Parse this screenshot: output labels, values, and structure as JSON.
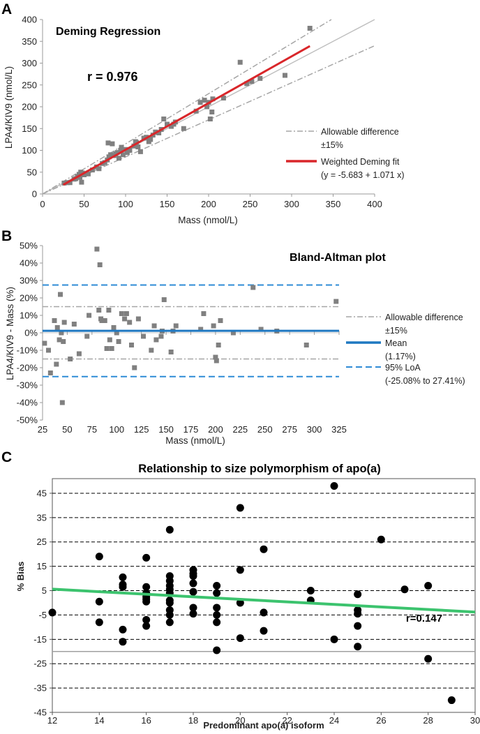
{
  "panels": {
    "a": {
      "letter": "A",
      "title": "Deming Regression",
      "r_label": "r = 0.976"
    },
    "b": {
      "letter": "B",
      "title": "Bland-Altman plot"
    },
    "c": {
      "letter": "C",
      "title": "Relationship to size polymorphism of apo(a)",
      "r_label": "r=0.147"
    }
  },
  "colors": {
    "points_grey": "#808080",
    "deming_fit": "#d9262a",
    "allowable": "#a6a6a6",
    "identity": "#bfbfbf",
    "mean_line": "#1f78c1",
    "loa_line": "#2e8bd6",
    "trend_line": "#3cc36e",
    "points_black": "#000000"
  },
  "chart_data": [
    {
      "id": "A",
      "type": "scatter",
      "title": "Deming Regression",
      "xlabel": "Mass (nmol/L)",
      "ylabel": "LPA4/KIV9 (nmol/L)",
      "xlim": [
        0,
        400
      ],
      "ylim": [
        0,
        400
      ],
      "xticks": [
        0,
        50,
        100,
        150,
        200,
        250,
        300,
        350,
        400
      ],
      "yticks": [
        0,
        50,
        100,
        150,
        200,
        250,
        300,
        350,
        400
      ],
      "annotation": "r = 0.976",
      "legend": [
        {
          "label": "Allowable difference",
          "sublabel": "±15%",
          "style": "dash-dot"
        },
        {
          "label": "Weighted Deming fit",
          "sublabel": "(y = -5.683 + 1.071 x)",
          "style": "solid-red"
        }
      ],
      "fit": {
        "intercept": -5.683,
        "slope": 1.071,
        "x_range": [
          25,
          322
        ]
      },
      "points": [
        [
          26,
          25
        ],
        [
          30,
          26
        ],
        [
          33,
          26
        ],
        [
          38,
          34
        ],
        [
          40,
          35
        ],
        [
          42,
          40
        ],
        [
          44,
          45
        ],
        [
          45,
          38
        ],
        [
          46,
          50
        ],
        [
          47,
          27
        ],
        [
          48,
          48
        ],
        [
          50,
          44
        ],
        [
          55,
          46
        ],
        [
          60,
          55
        ],
        [
          65,
          62
        ],
        [
          68,
          58
        ],
        [
          72,
          70
        ],
        [
          75,
          72
        ],
        [
          78,
          78
        ],
        [
          79,
          117
        ],
        [
          80,
          85
        ],
        [
          82,
          90
        ],
        [
          84,
          115
        ],
        [
          86,
          88
        ],
        [
          88,
          92
        ],
        [
          90,
          95
        ],
        [
          92,
          82
        ],
        [
          94,
          100
        ],
        [
          95,
          107
        ],
        [
          97,
          90
        ],
        [
          100,
          102
        ],
        [
          102,
          95
        ],
        [
          105,
          100
        ],
        [
          110,
          110
        ],
        [
          112,
          120
        ],
        [
          113,
          118
        ],
        [
          115,
          108
        ],
        [
          118,
          97
        ],
        [
          122,
          128
        ],
        [
          125,
          130
        ],
        [
          128,
          120
        ],
        [
          130,
          125
        ],
        [
          133,
          135
        ],
        [
          136,
          142
        ],
        [
          140,
          140
        ],
        [
          143,
          148
        ],
        [
          146,
          172
        ],
        [
          150,
          160
        ],
        [
          155,
          155
        ],
        [
          158,
          160
        ],
        [
          160,
          165
        ],
        [
          170,
          150
        ],
        [
          185,
          190
        ],
        [
          190,
          210
        ],
        [
          195,
          215
        ],
        [
          198,
          200
        ],
        [
          200,
          210
        ],
        [
          202,
          172
        ],
        [
          204,
          188
        ],
        [
          205,
          218
        ],
        [
          218,
          220
        ],
        [
          238,
          302
        ],
        [
          246,
          253
        ],
        [
          252,
          258
        ],
        [
          262,
          265
        ],
        [
          292,
          272
        ],
        [
          322,
          380
        ]
      ]
    },
    {
      "id": "B",
      "type": "scatter",
      "title": "Bland-Altman plot",
      "xlabel": "Mass (nmol/L)",
      "ylabel": "LPA4/KIV9 - Mass (%)",
      "xlim": [
        25,
        325
      ],
      "ylim": [
        -50,
        50
      ],
      "xticks": [
        25,
        50,
        75,
        100,
        125,
        150,
        175,
        200,
        225,
        250,
        275,
        300,
        325
      ],
      "yticks": [
        -50,
        -40,
        -30,
        -20,
        -10,
        0,
        10,
        20,
        30,
        40,
        50
      ],
      "ytick_labels": [
        "-50%",
        "-40%",
        "-30%",
        "-20%",
        "-10%",
        "0%",
        "10%",
        "20%",
        "30%",
        "40%",
        "50%"
      ],
      "reference_lines": {
        "mean": 1.17,
        "loa_low": -25.08,
        "loa_high": 27.41,
        "allowable_low": -15,
        "allowable_high": 15
      },
      "legend": [
        {
          "label": "Allowable difference",
          "sublabel": "±15%",
          "style": "dash-dot"
        },
        {
          "label": "Mean",
          "sublabel": "(1.17%)",
          "style": "solid-blue"
        },
        {
          "label": "95% LoA",
          "sublabel": "(-25.08% to 27.41%)",
          "style": "dashed-blue"
        }
      ],
      "points": [
        [
          27,
          -6
        ],
        [
          31,
          -10
        ],
        [
          33,
          -23
        ],
        [
          37,
          7
        ],
        [
          39,
          -18
        ],
        [
          40,
          3
        ],
        [
          42,
          -4
        ],
        [
          43,
          22
        ],
        [
          44,
          0
        ],
        [
          45,
          -40
        ],
        [
          46,
          -5
        ],
        [
          47,
          6
        ],
        [
          53,
          -15
        ],
        [
          57,
          5
        ],
        [
          62,
          -12
        ],
        [
          70,
          -2
        ],
        [
          72,
          10
        ],
        [
          80,
          48
        ],
        [
          82,
          13
        ],
        [
          83,
          39
        ],
        [
          84,
          8
        ],
        [
          85,
          7
        ],
        [
          88,
          7
        ],
        [
          90,
          -9
        ],
        [
          92,
          13
        ],
        [
          93,
          -4
        ],
        [
          95,
          -9
        ],
        [
          97,
          3
        ],
        [
          100,
          0
        ],
        [
          102,
          -5
        ],
        [
          105,
          11
        ],
        [
          108,
          8
        ],
        [
          110,
          11
        ],
        [
          113,
          6
        ],
        [
          115,
          -7
        ],
        [
          118,
          -20
        ],
        [
          122,
          8
        ],
        [
          127,
          -2
        ],
        [
          135,
          -10
        ],
        [
          138,
          4
        ],
        [
          140,
          -4
        ],
        [
          145,
          -2
        ],
        [
          146,
          1
        ],
        [
          148,
          19
        ],
        [
          155,
          -11
        ],
        [
          157,
          1
        ],
        [
          160,
          4
        ],
        [
          185,
          2
        ],
        [
          188,
          11
        ],
        [
          198,
          4
        ],
        [
          200,
          -14
        ],
        [
          201,
          -16
        ],
        [
          203,
          -7
        ],
        [
          205,
          7
        ],
        [
          218,
          0
        ],
        [
          238,
          26
        ],
        [
          246,
          2
        ],
        [
          262,
          1
        ],
        [
          292,
          -7
        ],
        [
          322,
          18
        ]
      ]
    },
    {
      "id": "C",
      "type": "scatter",
      "title": "Relationship to size polymorphism of apo(a)",
      "xlabel": "Predominant apo(a) isoform",
      "ylabel": "% Bias",
      "xlim": [
        12,
        30
      ],
      "ylim": [
        -45,
        51
      ],
      "xticks": [
        12,
        14,
        16,
        18,
        20,
        22,
        24,
        26,
        28,
        30
      ],
      "yticks": [
        -45,
        -35,
        -25,
        -15,
        -5,
        5,
        15,
        25,
        35,
        45
      ],
      "baseline": -20,
      "annotation": "r=0.147",
      "trend": {
        "x": [
          12,
          30
        ],
        "y": [
          5.6,
          -3.8
        ]
      },
      "points": [
        [
          12,
          -4
        ],
        [
          14,
          19
        ],
        [
          14,
          0.5
        ],
        [
          14,
          -8
        ],
        [
          15,
          10.5
        ],
        [
          15,
          7.5
        ],
        [
          15,
          6.5
        ],
        [
          15,
          -11
        ],
        [
          15,
          -16
        ],
        [
          16,
          18.5
        ],
        [
          16,
          6.5
        ],
        [
          16,
          4
        ],
        [
          16,
          2.5
        ],
        [
          16,
          1.5
        ],
        [
          16,
          0.5
        ],
        [
          16,
          -7
        ],
        [
          16,
          -9.5
        ],
        [
          17,
          30
        ],
        [
          17,
          11
        ],
        [
          17,
          9
        ],
        [
          17,
          7
        ],
        [
          17,
          5.5
        ],
        [
          17,
          4
        ],
        [
          17,
          1
        ],
        [
          17,
          0
        ],
        [
          17,
          -3
        ],
        [
          17,
          -5
        ],
        [
          17,
          -8
        ],
        [
          18,
          13.5
        ],
        [
          18,
          12
        ],
        [
          18,
          11
        ],
        [
          18,
          8
        ],
        [
          18,
          4.5
        ],
        [
          18,
          -2
        ],
        [
          18,
          -4.5
        ],
        [
          19,
          7
        ],
        [
          19,
          4
        ],
        [
          19,
          -2
        ],
        [
          19,
          -5
        ],
        [
          19,
          -8
        ],
        [
          19,
          -19.5
        ],
        [
          20,
          39
        ],
        [
          20,
          13.5
        ],
        [
          20,
          0
        ],
        [
          20,
          -14.5
        ],
        [
          21,
          22
        ],
        [
          21,
          -4
        ],
        [
          21,
          -11.5
        ],
        [
          23,
          5
        ],
        [
          23,
          1
        ],
        [
          24,
          48
        ],
        [
          24,
          -15
        ],
        [
          25,
          3.5
        ],
        [
          25,
          -3
        ],
        [
          25,
          -4.5
        ],
        [
          25,
          -9.5
        ],
        [
          25,
          -18
        ],
        [
          26,
          26
        ],
        [
          27,
          5.5
        ],
        [
          28,
          7
        ],
        [
          28,
          -23
        ],
        [
          29,
          -40
        ]
      ]
    }
  ]
}
